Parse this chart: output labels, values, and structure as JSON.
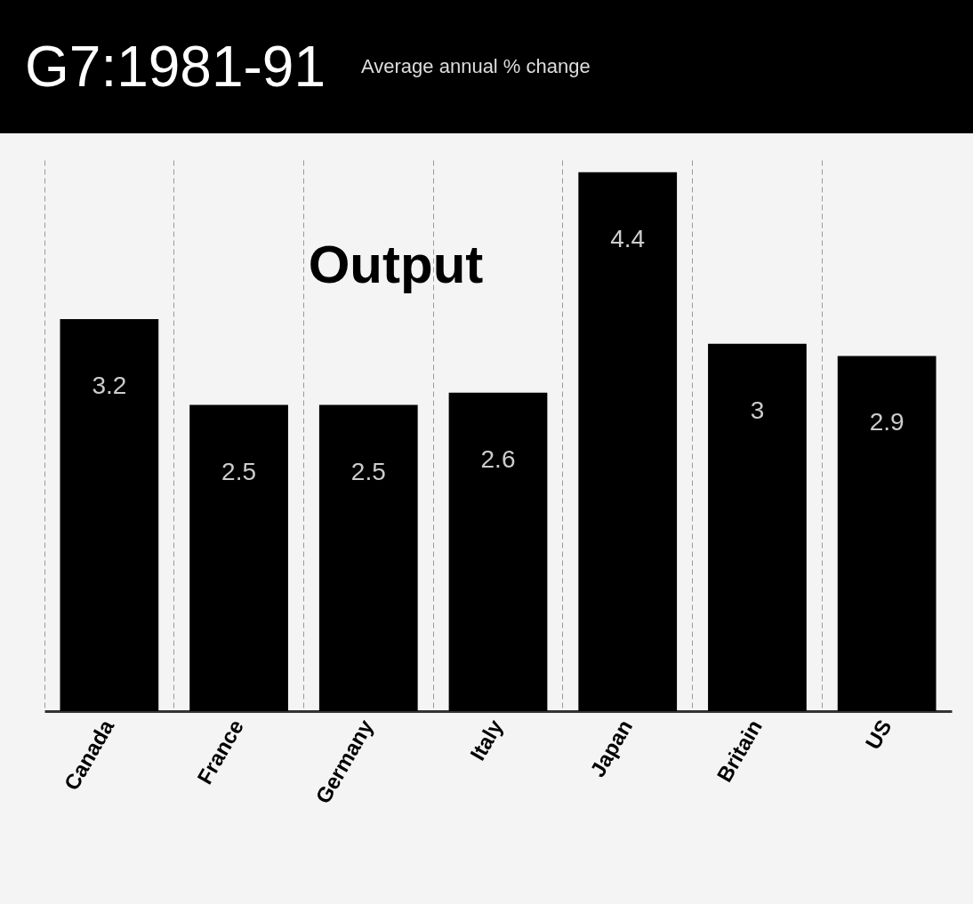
{
  "chart_data": {
    "type": "bar",
    "title": "G7:1981-91",
    "subtitle": "Average annual % change",
    "annotations": [
      "Output"
    ],
    "categories": [
      "Canada",
      "France",
      "Germany",
      "Italy",
      "Japan",
      "Britain",
      "US"
    ],
    "values": [
      3.2,
      2.5,
      2.5,
      2.6,
      4.4,
      3,
      2.9
    ],
    "color": "#000000",
    "data_labels": true,
    "grid": "x",
    "tick_labels": "x"
  }
}
